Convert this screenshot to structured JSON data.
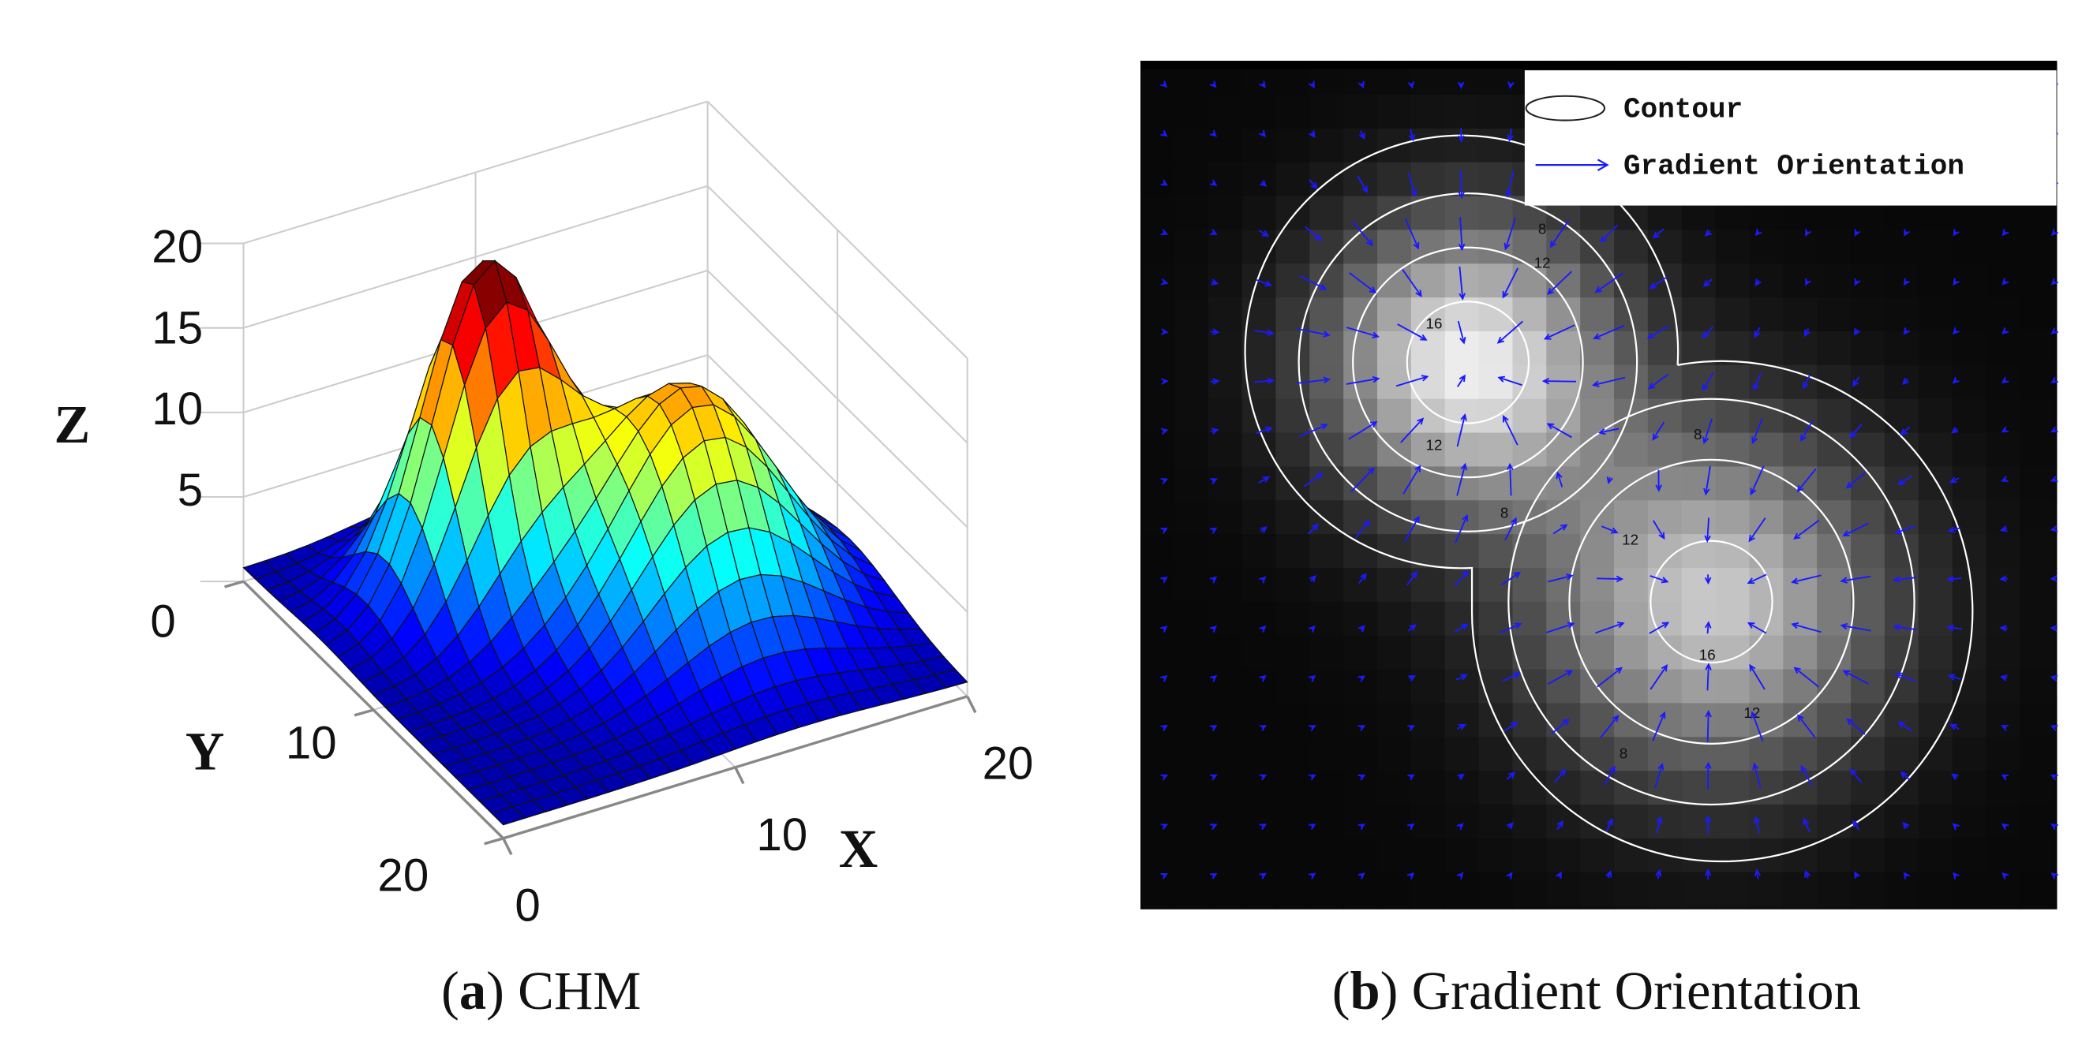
{
  "panel_a": {
    "z_label": "Z",
    "y_label": "Y",
    "x_label": "X",
    "z_ticks": [
      "20",
      "15",
      "10",
      "5",
      "0"
    ],
    "y_ticks": [
      "10",
      "20"
    ],
    "x_ticks": [
      "0",
      "10",
      "20"
    ],
    "caption": {
      "prefix": "(",
      "label": "a",
      "text": ") CHM"
    }
  },
  "panel_b": {
    "legend": [
      "Contour",
      "Gradient Orientation"
    ],
    "contour_labels": [
      "8",
      "12",
      "16",
      "12",
      "8",
      "8",
      "12",
      "16",
      "12",
      "8"
    ],
    "caption": {
      "prefix": "(",
      "label": "b",
      "text": ") Gradient Orientation"
    }
  }
}
